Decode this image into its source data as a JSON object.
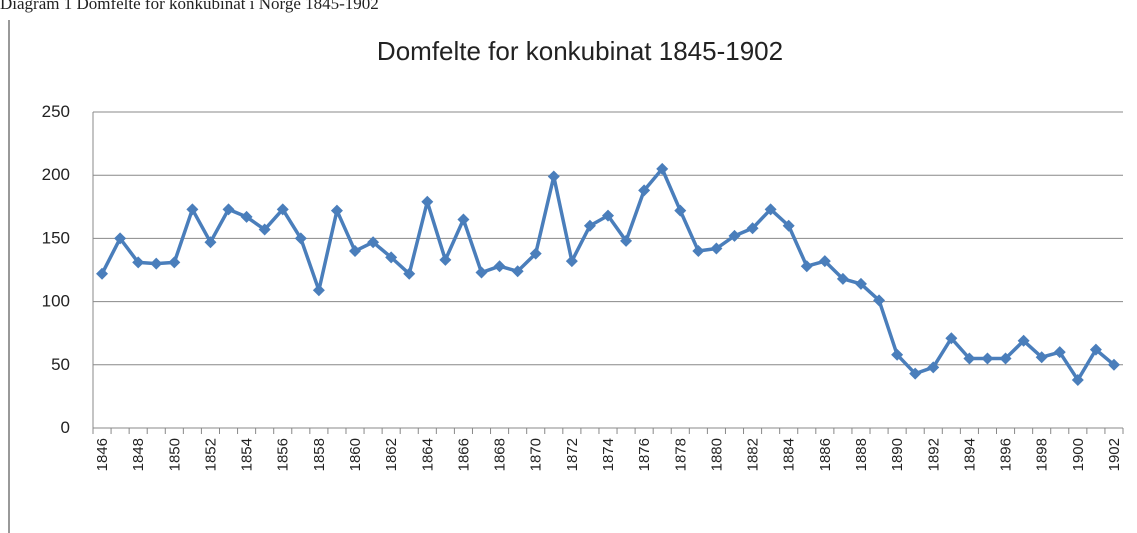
{
  "caption": "Diagram 1 Domfelte for konkubinat i Norge 1845-1902",
  "chart_data": {
    "type": "line",
    "title": "Domfelte for konkubinat 1845-1902",
    "categories": [
      "1846",
      null,
      "1848",
      null,
      "1850",
      null,
      "1852",
      null,
      "1854",
      null,
      "1856",
      null,
      "1858",
      null,
      "1860",
      null,
      "1862",
      null,
      "1864",
      null,
      "1866",
      null,
      "1868",
      null,
      "1870",
      null,
      "1872",
      null,
      "1874",
      null,
      "1876",
      null,
      "1878",
      null,
      "1880",
      null,
      "1882",
      null,
      "1884",
      null,
      "1886",
      null,
      "1888",
      null,
      "1890",
      null,
      "1892",
      null,
      "1894",
      null,
      "1896",
      null,
      "1898",
      null,
      "1900",
      null,
      "1902"
    ],
    "series": [
      {
        "name": "Domfelte",
        "color": "#4a7ebb",
        "values": [
          122,
          150,
          131,
          130,
          131,
          173,
          147,
          173,
          167,
          157,
          173,
          150,
          109,
          172,
          140,
          147,
          135,
          122,
          179,
          133,
          165,
          123,
          128,
          124,
          138,
          199,
          132,
          160,
          168,
          148,
          188,
          205,
          172,
          140,
          142,
          152,
          158,
          173,
          160,
          128,
          132,
          118,
          114,
          101,
          58,
          43,
          48,
          71,
          55,
          55,
          55,
          69,
          56,
          60,
          38,
          62,
          50
        ]
      }
    ],
    "ylim": [
      0,
      250
    ],
    "yticks": [
      0,
      50,
      100,
      150,
      200,
      250
    ],
    "grid": true
  }
}
